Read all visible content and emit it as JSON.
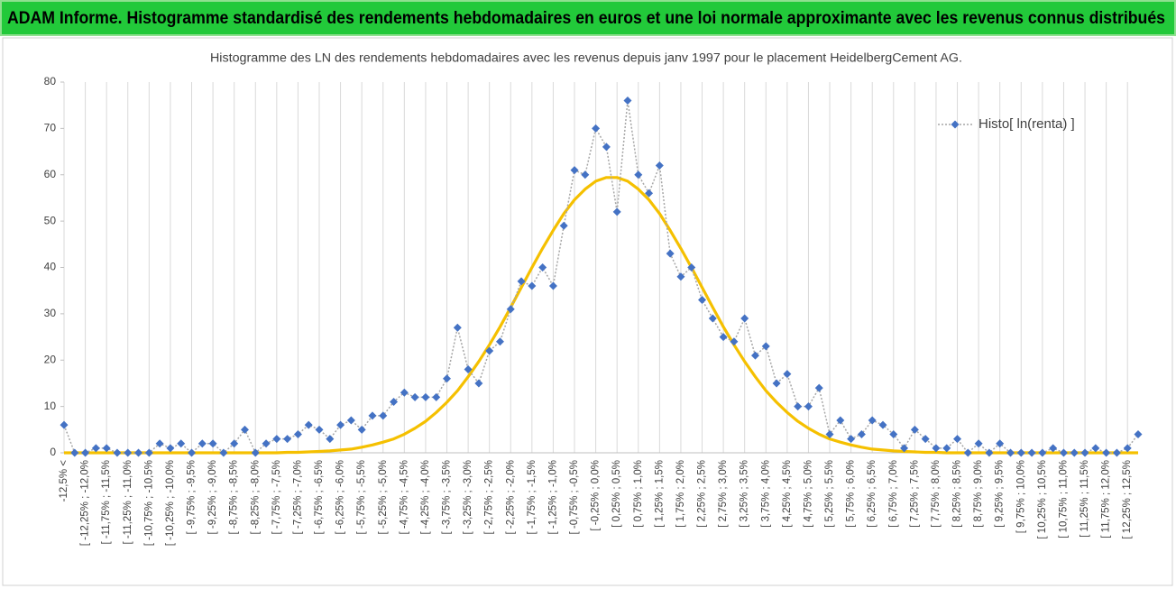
{
  "chart_data": {
    "type": "line",
    "header": "ADAM Informe. Histogramme standardisé des rendements hebdomadaires en euros et une loi normale approximante avec les revenus connus distribués",
    "title": "Histogramme des LN des rendements hebdomadaires avec les revenus depuis janv 1997 pour le placement HeidelbergCement AG.",
    "categories": [
      "-12,5% <",
      null,
      "[ -12,25% ; -12,0%",
      null,
      "[ -11,75% ; -11,5%",
      null,
      "[ -11,25% ; -11,0%",
      null,
      "[ -10,75% ; -10,5%",
      null,
      "[ -10,25% ; -10,0%",
      null,
      "[ -9,75% ; -9,5%",
      null,
      "[ -9,25% ; -9,0%",
      null,
      "[ -8,75% ; -8,5%",
      null,
      "[ -8,25% ; -8,0%",
      null,
      "[ -7,75% ; -7,5%",
      null,
      "[ -7,25% ; -7,0%",
      null,
      "[ -6,75% ; -6,5%",
      null,
      "[ -6,25% ; -6,0%",
      null,
      "[ -5,75% ; -5,5%",
      null,
      "[ -5,25% ; -5,0%",
      null,
      "[ -4,75% ; -4,5%",
      null,
      "[ -4,25% ; -4,0%",
      null,
      "[ -3,75% ; -3,5%",
      null,
      "[ -3,25% ; -3,0%",
      null,
      "[ -2,75% ; -2,5%",
      null,
      "[ -2,25% ; -2,0%",
      null,
      "[ -1,75% ; -1,5%",
      null,
      "[ -1,25% ; -1,0%",
      null,
      "[ -0,75% ; -0,5%",
      null,
      "[ -0,25% ; 0,0%",
      null,
      "[ 0,25% ; 0,5%",
      null,
      "[ 0,75% ; 1,0%",
      null,
      "[ 1,25% ; 1,5%",
      null,
      "[ 1,75% ; 2,0%",
      null,
      "[ 2,25% ; 2,5%",
      null,
      "[ 2,75% ; 3,0%",
      null,
      "[ 3,25% ; 3,5%",
      null,
      "[ 3,75% ; 4,0%",
      null,
      "[ 4,25% ; 4,5%",
      null,
      "[ 4,75% ; 5,0%",
      null,
      "[ 5,25% ; 5,5%",
      null,
      "[ 5,75% ; 6,0%",
      null,
      "[ 6,25% ; 6,5%",
      null,
      "[ 6,75% ; 7,0%",
      null,
      "[ 7,25% ; 7,5%",
      null,
      "[ 7,75% ; 8,0%",
      null,
      "[ 8,25% ; 8,5%",
      null,
      "[ 8,75% ; 9,0%",
      null,
      "[ 9,25% ; 9,5%",
      null,
      "[ 9,75% ; 10,0%",
      null,
      "[ 10,25% ; 10,5%",
      null,
      "[ 10,75% ; 11,0%",
      null,
      "[ 11,25% ; 11,5%",
      null,
      "[ 11,75% ; 12,0%",
      null,
      "[ 12,25% ; 12,5%",
      null
    ],
    "series": [
      {
        "name": "Histo[ ln(renta) ]",
        "color": "#4472c4",
        "line_color": "#a6a6a6",
        "values": [
          6,
          0,
          0,
          1,
          1,
          0,
          0,
          0,
          0,
          2,
          1,
          2,
          0,
          2,
          2,
          0,
          2,
          5,
          0,
          2,
          3,
          3,
          4,
          6,
          5,
          3,
          6,
          7,
          5,
          8,
          8,
          11,
          13,
          12,
          12,
          12,
          16,
          27,
          18,
          15,
          22,
          24,
          31,
          37,
          36,
          40,
          36,
          49,
          61,
          60,
          70,
          66,
          52,
          76,
          60,
          56,
          62,
          43,
          38,
          40,
          33,
          29,
          25,
          24,
          29,
          21,
          23,
          15,
          17,
          10,
          10,
          14,
          4,
          7,
          3,
          4,
          7,
          6,
          4,
          1,
          5,
          3,
          1,
          1,
          3,
          0,
          2,
          0,
          2,
          0,
          0,
          0,
          0,
          1,
          0,
          0,
          0,
          1,
          0,
          0,
          1,
          4
        ]
      },
      {
        "color": "#f5c000",
        "values": [
          0,
          0,
          0,
          0,
          0,
          0,
          0,
          0,
          0,
          0,
          0,
          0,
          0,
          0,
          0,
          0,
          0,
          0,
          0,
          0,
          0,
          0.1,
          0.1,
          0.2,
          0.3,
          0.4,
          0.6,
          0.8,
          1.2,
          1.7,
          2.3,
          3.0,
          4.0,
          5.3,
          6.8,
          8.7,
          10.9,
          13.4,
          16.4,
          19.7,
          23.3,
          27.2,
          31.4,
          35.7,
          40.0,
          44.1,
          48.0,
          51.6,
          54.6,
          56.9,
          58.6,
          59.4,
          59.4,
          58.6,
          56.9,
          54.6,
          51.6,
          48.0,
          44.1,
          40.0,
          35.7,
          31.4,
          27.2,
          23.3,
          19.7,
          16.4,
          13.4,
          10.9,
          8.7,
          6.8,
          5.3,
          4.0,
          3.0,
          2.3,
          1.7,
          1.2,
          0.8,
          0.6,
          0.4,
          0.3,
          0.2,
          0.1,
          0.1,
          0,
          0,
          0,
          0,
          0,
          0,
          0,
          0,
          0,
          0,
          0,
          0,
          0,
          0,
          0,
          0,
          0,
          0,
          0
        ]
      }
    ],
    "ylim": [
      0,
      80
    ],
    "yticks": [
      0,
      10,
      20,
      30,
      40,
      50,
      60,
      70,
      80
    ],
    "grid": "x",
    "legend": "top-right"
  }
}
